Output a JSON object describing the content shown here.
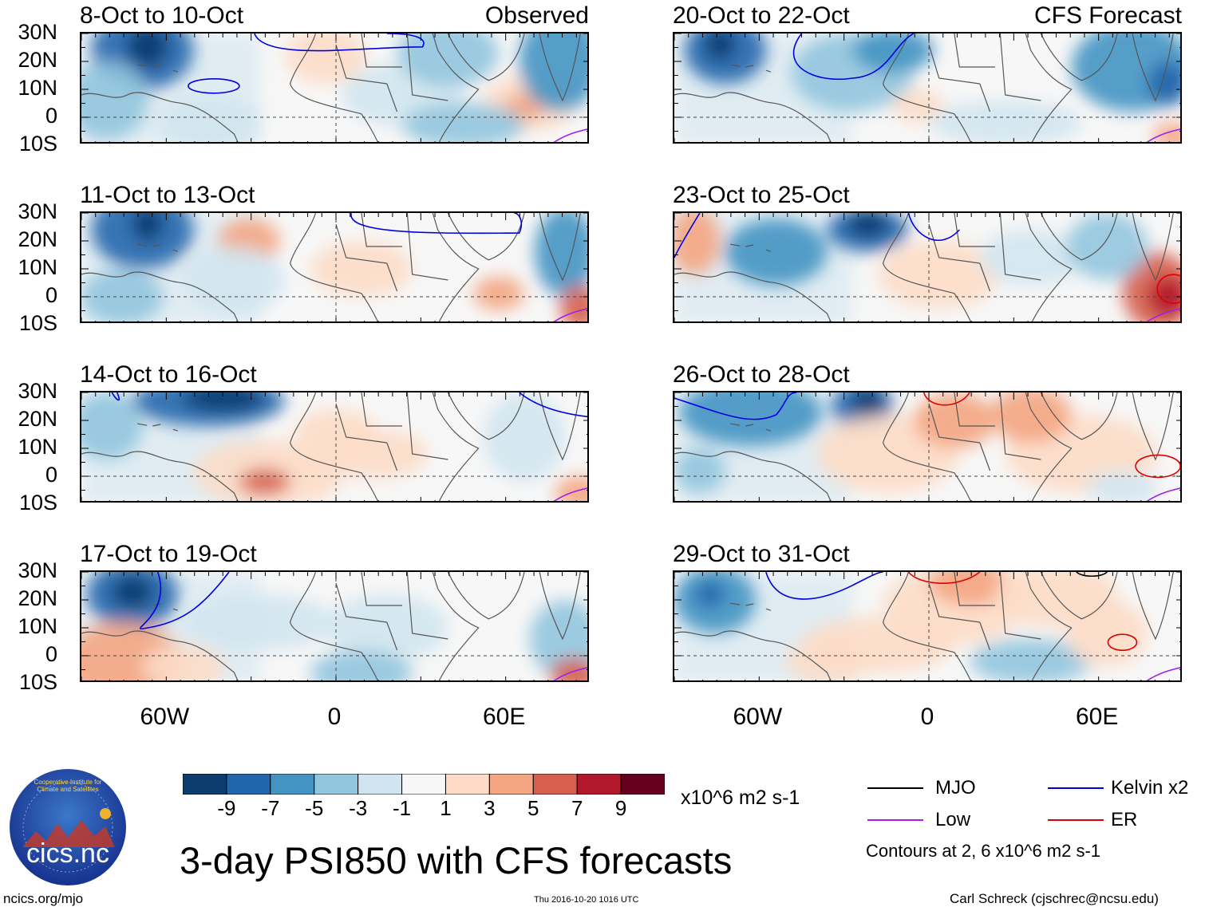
{
  "headers": {
    "observed": "Observed",
    "forecast": "CFS Forecast"
  },
  "panels": [
    {
      "title": "8-Oct to 10-Oct",
      "side": "observed",
      "pattern": 0
    },
    {
      "title": "11-Oct to 13-Oct",
      "side": "observed",
      "pattern": 1
    },
    {
      "title": "14-Oct to 16-Oct",
      "side": "observed",
      "pattern": 2
    },
    {
      "title": "17-Oct to 19-Oct",
      "side": "observed",
      "pattern": 3
    },
    {
      "title": "20-Oct to 22-Oct",
      "side": "forecast",
      "pattern": 4
    },
    {
      "title": "23-Oct to 25-Oct",
      "side": "forecast",
      "pattern": 5
    },
    {
      "title": "26-Oct to 28-Oct",
      "side": "forecast",
      "pattern": 6
    },
    {
      "title": "29-Oct to 31-Oct",
      "side": "forecast",
      "pattern": 7
    }
  ],
  "lat_labels": [
    "30N",
    "20N",
    "10N",
    "0",
    "10S"
  ],
  "lon_labels": [
    "60W",
    "0",
    "60E"
  ],
  "colorbar": {
    "colors": [
      "#0c3b6e",
      "#2166ac",
      "#4393c3",
      "#92c5de",
      "#d1e5f0",
      "#f7f7f7",
      "#fddbc7",
      "#f4a582",
      "#d6604d",
      "#b2182b",
      "#67001f"
    ],
    "labels": [
      "-9",
      "-7",
      "-5",
      "-3",
      "-1",
      "1",
      "3",
      "5",
      "7",
      "9"
    ],
    "units": "x10^6 m2 s-1"
  },
  "legend": {
    "items": [
      {
        "label": "MJO",
        "color": "#000000"
      },
      {
        "label": "Kelvin x2",
        "color": "#0000dd"
      },
      {
        "label": "Low",
        "color": "#a020f0"
      },
      {
        "label": "ER",
        "color": "#dd0000"
      }
    ],
    "note": "Contours at 2, 6 x10^6 m2 s-1"
  },
  "main_title": "3-day PSI850 with CFS forecasts",
  "logo_text": "cics.nc",
  "logo_ring_text": "Cooperative Institute for Climate and Satellites",
  "footer": {
    "left": "ncics.org/mjo",
    "center": "Thu 2016-10-20 1016 UTC",
    "right": "Carl Schreck (cjschrec@ncsu.edu)"
  }
}
